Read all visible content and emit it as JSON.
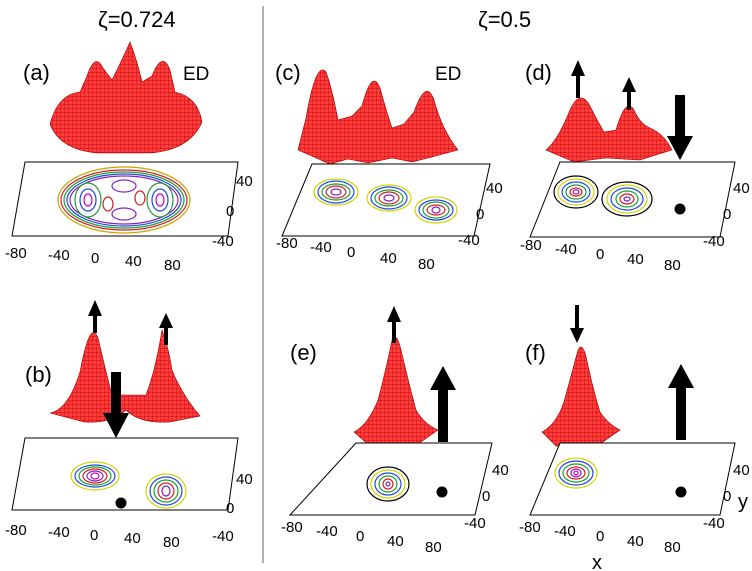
{
  "figure": {
    "headers": {
      "left": "ζ=0.724",
      "right": "ζ=0.5"
    },
    "panels": [
      {
        "id": "a",
        "label": "(a)",
        "tag": "ED",
        "x_ticks": [
          "-80",
          "-40",
          "0",
          "40",
          "80"
        ],
        "y_ticks": [
          "40",
          "0",
          "-40"
        ]
      },
      {
        "id": "b",
        "label": "(b)",
        "tag": "",
        "x_ticks": [
          "-80",
          "-40",
          "0",
          "40",
          "80"
        ],
        "y_ticks": [
          "40",
          "0",
          "-40"
        ]
      },
      {
        "id": "c",
        "label": "(c)",
        "tag": "ED",
        "x_ticks": [
          "-80",
          "-40",
          "0",
          "40",
          "80"
        ],
        "y_ticks": [
          "40",
          "0",
          "-40"
        ]
      },
      {
        "id": "d",
        "label": "(d)",
        "tag": "",
        "x_ticks": [
          "-80",
          "-40",
          "0",
          "40",
          "80"
        ],
        "y_ticks": [
          "40",
          "0",
          "-40"
        ]
      },
      {
        "id": "e",
        "label": "(e)",
        "tag": "",
        "x_ticks": [
          "-80",
          "-40",
          "0",
          "40",
          "80"
        ],
        "y_ticks": [
          "40",
          "0",
          "-40"
        ]
      },
      {
        "id": "f",
        "label": "(f)",
        "tag": "",
        "x_ticks": [
          "-80",
          "-40",
          "0",
          "40",
          "80"
        ],
        "y_ticks": [
          "40",
          "0",
          "-40"
        ],
        "x_axis": "x",
        "y_axis": "y"
      }
    ]
  }
}
